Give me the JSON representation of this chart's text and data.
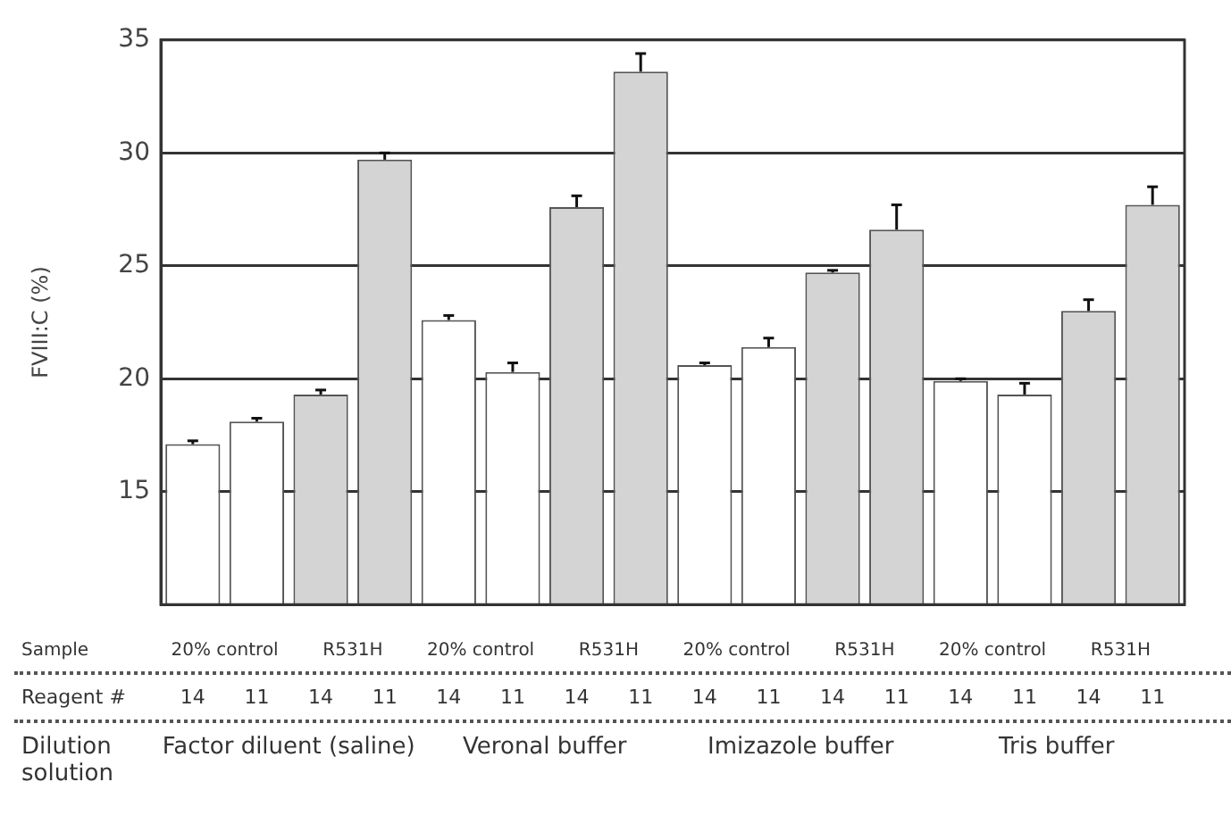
{
  "chart_data": {
    "type": "bar",
    "ylabel": "FVIII:C (%)",
    "categories": [
      "14",
      "11",
      "14",
      "11",
      "14",
      "11",
      "14",
      "11",
      "14",
      "11",
      "14",
      "11",
      "14",
      "11",
      "14",
      "11"
    ],
    "values": [
      17.1,
      18.1,
      19.3,
      29.7,
      22.6,
      20.3,
      27.6,
      33.6,
      20.6,
      21.4,
      24.7,
      26.6,
      19.9,
      19.3,
      23.0,
      27.7
    ],
    "errors": [
      [
        17.1,
        17.25
      ],
      [
        18.1,
        18.25
      ],
      [
        19.3,
        19.5
      ],
      [
        29.7,
        30.0
      ],
      [
        22.6,
        22.8
      ],
      [
        20.3,
        20.7
      ],
      [
        27.6,
        28.1
      ],
      [
        33.6,
        34.4
      ],
      [
        20.6,
        20.7
      ],
      [
        21.4,
        21.8
      ],
      [
        24.7,
        24.8
      ],
      [
        26.6,
        27.7
      ],
      [
        19.9,
        20.0
      ],
      [
        19.3,
        19.8
      ],
      [
        23.0,
        23.5
      ],
      [
        27.7,
        28.5
      ]
    ],
    "colors": [
      "#ffffff",
      "#ffffff",
      "#d4d4d4",
      "#d4d4d4",
      "#ffffff",
      "#ffffff",
      "#d4d4d4",
      "#d4d4d4",
      "#ffffff",
      "#ffffff",
      "#d4d4d4",
      "#d4d4d4",
      "#ffffff",
      "#ffffff",
      "#d4d4d4",
      "#d4d4d4"
    ],
    "ylim": [
      10,
      35
    ],
    "yticks": [
      15,
      20,
      25,
      30,
      35
    ],
    "grid": "y",
    "annotations": [
      "Sample",
      "20% control",
      "R531H",
      "20% control",
      "R531H",
      "20% control",
      "R531H",
      "20% control",
      "R531H",
      "Reagent #",
      "Dilution solution",
      "Factor diluent (saline)",
      "Veronal buffer",
      "Imizazole buffer",
      "Tris buffer"
    ]
  }
}
